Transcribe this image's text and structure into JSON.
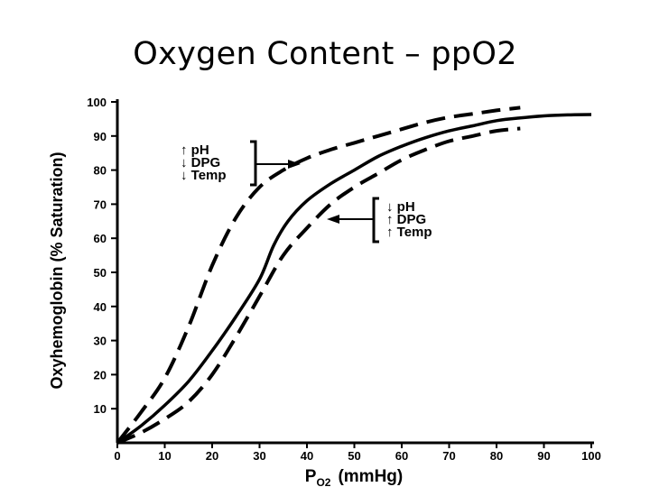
{
  "slide": {
    "title": "Oxygen Content – ppO2"
  },
  "chart_data": {
    "type": "line",
    "title": "",
    "xlabel_main": "P",
    "xlabel_sub": "O2",
    "xlabel_unit": "(mmHg)",
    "ylabel": "Oxyhemoglobin (% Saturation)",
    "xlim": [
      0,
      100
    ],
    "ylim": [
      0,
      100
    ],
    "xticks": [
      0,
      10,
      20,
      30,
      40,
      50,
      60,
      70,
      80,
      90,
      100
    ],
    "yticks": [
      10,
      20,
      30,
      40,
      50,
      60,
      70,
      80,
      90,
      100
    ],
    "grid": false,
    "series": [
      {
        "style": "solid",
        "x": [
          0,
          5,
          10,
          15,
          20,
          25,
          30,
          33,
          36,
          40,
          45,
          50,
          55,
          60,
          65,
          70,
          75,
          80,
          85,
          90,
          95,
          100
        ],
        "y": [
          0,
          5,
          11,
          18,
          27,
          37,
          48,
          58,
          65,
          71,
          76,
          80,
          84,
          87,
          89.5,
          91.5,
          93,
          94.5,
          95.3,
          95.9,
          96.2,
          96.3
        ]
      },
      {
        "style": "dashed",
        "x": [
          0,
          5,
          10,
          15,
          20,
          25,
          30,
          35,
          40,
          45,
          50,
          55,
          60,
          65,
          70,
          75,
          80,
          85
        ],
        "y": [
          0,
          9,
          19,
          34,
          52,
          66,
          75,
          80,
          83.5,
          86,
          88,
          90,
          92,
          94,
          95.5,
          96.5,
          97.5,
          98.3
        ]
      },
      {
        "style": "dashed",
        "x": [
          0,
          5,
          10,
          15,
          20,
          25,
          30,
          35,
          40,
          45,
          50,
          55,
          60,
          65,
          70,
          75,
          80,
          85
        ],
        "y": [
          0,
          3,
          7,
          12,
          20,
          31,
          43,
          55,
          63,
          70,
          75,
          79,
          83,
          86,
          88.5,
          90,
          91.5,
          92.2
        ]
      }
    ],
    "annotations": [
      {
        "lines": [
          "↑ pH",
          "↓ DPG",
          "↓ Temp"
        ]
      },
      {
        "lines": [
          "↓ pH",
          "↑ DPG",
          "↑ Temp"
        ]
      }
    ]
  }
}
